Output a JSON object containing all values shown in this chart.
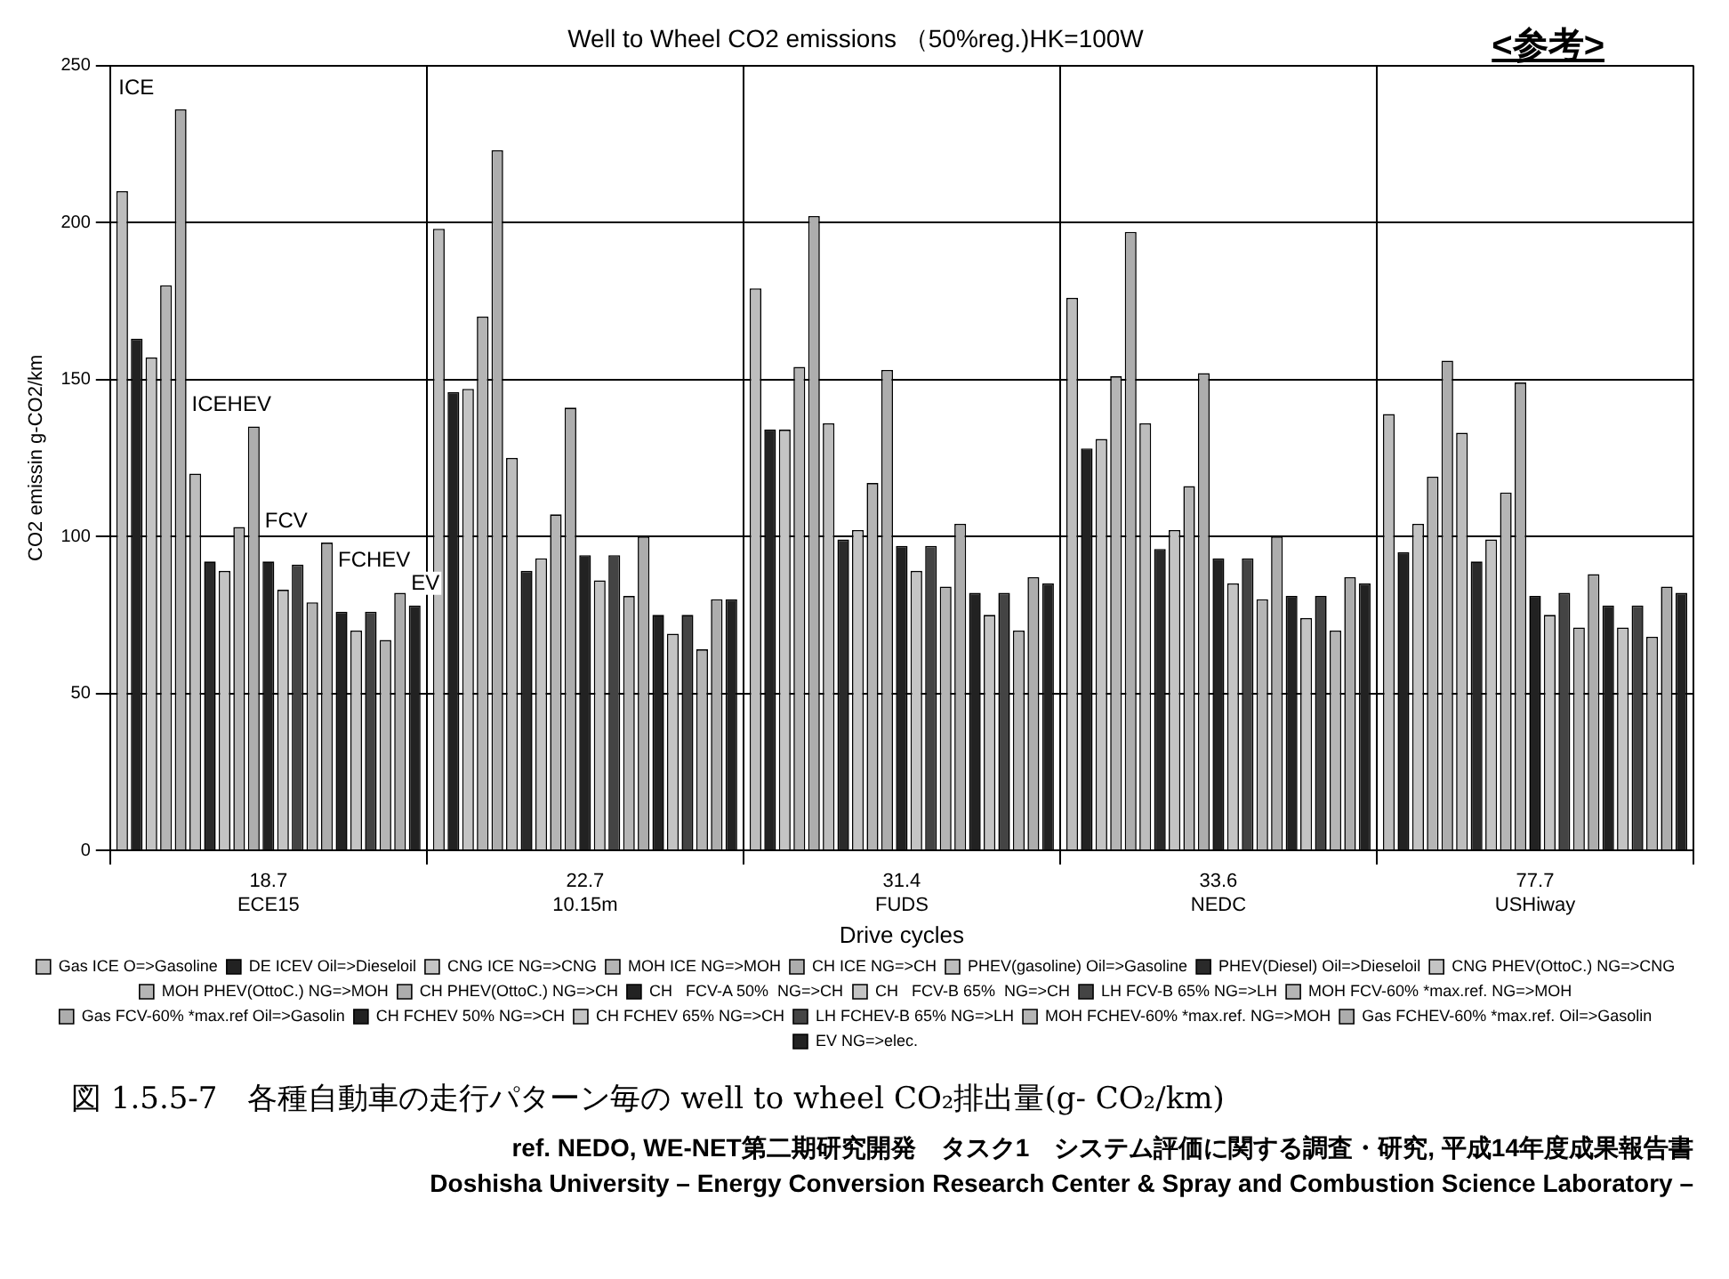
{
  "chart_data": {
    "type": "bar",
    "title": "Well to Wheel CO2 emissions （50%reg.)HK=100W",
    "xlabel": "Drive cycles",
    "ylabel": "CO2 emissin g-CO2/km",
    "categories": [
      "18.7\nECE15",
      "22.7\n10.15m",
      "31.4\nFUDS",
      "33.6\nNEDC",
      "77.7\nUSHiway"
    ],
    "ylim": [
      0,
      250
    ],
    "yticks": [
      0,
      50,
      100,
      150,
      200,
      250
    ],
    "grid": true,
    "legend": "bottom",
    "series": [
      {
        "name": "Gas ICE O=>Gasoline",
        "color": "#bdbdbd",
        "values": [
          210,
          198,
          179,
          176,
          139
        ]
      },
      {
        "name": "DE ICEV Oil=>Dieseloil",
        "color": "#222222",
        "values": [
          163,
          146,
          134,
          128,
          95
        ]
      },
      {
        "name": "CNG ICE NG=>CNG",
        "color": "#c4c4c4",
        "values": [
          157,
          147,
          134,
          131,
          104
        ]
      },
      {
        "name": "MOH ICE NG=>MOH",
        "color": "#b5b5b5",
        "values": [
          180,
          170,
          154,
          151,
          119
        ]
      },
      {
        "name": "CH ICE NG=>CH",
        "color": "#adadad",
        "values": [
          236,
          223,
          202,
          197,
          156
        ]
      },
      {
        "name": "PHEV(gasoline) Oil=>Gasoline",
        "color": "#bdbdbd",
        "values": [
          120,
          125,
          136,
          136,
          133
        ]
      },
      {
        "name": "PHEV(Diesel) Oil=>Dieseloil",
        "color": "#2a2a2a",
        "values": [
          92,
          89,
          99,
          96,
          92
        ]
      },
      {
        "name": "CNG PHEV(OttoC.) NG=>CNG",
        "color": "#c4c4c4",
        "values": [
          89,
          93,
          102,
          102,
          99
        ]
      },
      {
        "name": "MOH PHEV(OttoC.) NG=>MOH",
        "color": "#b5b5b5",
        "values": [
          103,
          107,
          117,
          116,
          114
        ]
      },
      {
        "name": "CH PHEV(OttoC.) NG=>CH",
        "color": "#adadad",
        "values": [
          135,
          141,
          153,
          152,
          149
        ]
      },
      {
        "name": "CH   FCV-A 50%  NG=>CH",
        "color": "#222222",
        "values": [
          92,
          94,
          97,
          93,
          81
        ]
      },
      {
        "name": "CH   FCV-B 65%  NG=>CH",
        "color": "#c4c4c4",
        "values": [
          83,
          86,
          89,
          85,
          75
        ]
      },
      {
        "name": "LH FCV-B 65% NG=>LH",
        "color": "#444444",
        "values": [
          91,
          94,
          97,
          93,
          82
        ]
      },
      {
        "name": "MOH FCV-60% *max.ref. NG=>MOH",
        "color": "#b5b5b5",
        "values": [
          79,
          81,
          84,
          80,
          71
        ]
      },
      {
        "name": "Gas FCV-60% *max.ref Oil=>Gasolin",
        "color": "#adadad",
        "values": [
          98,
          100,
          104,
          100,
          88
        ]
      },
      {
        "name": "CH FCHEV 50% NG=>CH",
        "color": "#222222",
        "values": [
          76,
          75,
          82,
          81,
          78
        ]
      },
      {
        "name": "CH FCHEV 65% NG=>CH",
        "color": "#c4c4c4",
        "values": [
          70,
          69,
          75,
          74,
          71
        ]
      },
      {
        "name": "LH FCHEV-B 65% NG=>LH",
        "color": "#444444",
        "values": [
          76,
          75,
          82,
          81,
          78
        ]
      },
      {
        "name": "MOH FCHEV-60% *max.ref. NG=>MOH",
        "color": "#b5b5b5",
        "values": [
          67,
          64,
          70,
          70,
          68
        ]
      },
      {
        "name": "Gas FCHEV-60% *max.ref. Oil=>Gasolin",
        "color": "#adadad",
        "values": [
          82,
          80,
          87,
          87,
          84
        ]
      },
      {
        "name": "EV NG=>elec.",
        "color": "#222222",
        "values": [
          78,
          80,
          85,
          85,
          82
        ]
      }
    ],
    "annotations": [
      "ICE",
      "ICEHEV",
      "FCV",
      "FCHEV",
      "EV",
      "<参考>",
      "図 1.5.5-7　各種自動車の走行パターン毎の well to wheel CO₂排出量(g- CO₂/km)",
      "ref. NEDO, WE-NET第二期研究開発　タスク1　システム評価に関する調査・研究, 平成14年度成果報告書",
      "Doshisha University – Energy Conversion Research Center & Spray and Combustion Science Laboratory –"
    ]
  }
}
